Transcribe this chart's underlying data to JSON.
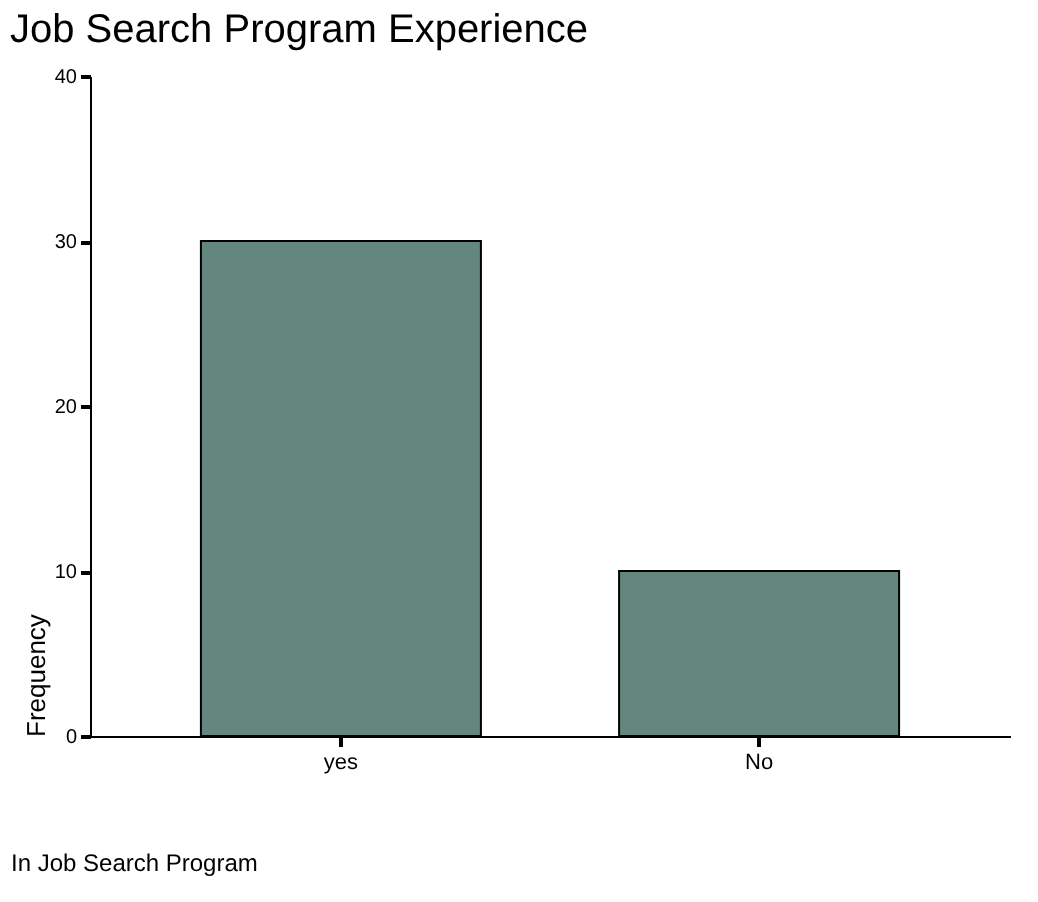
{
  "chart_data": {
    "type": "bar",
    "title": "Job Search Program Experience",
    "xlabel": "In Job Search Program",
    "ylabel": "Frequency",
    "categories": [
      "yes",
      "No"
    ],
    "values": [
      30,
      10
    ],
    "color": "#63877e",
    "ylim": [
      0,
      40
    ],
    "yticks": [
      0,
      10,
      20,
      30,
      40
    ],
    "grid": false
  }
}
